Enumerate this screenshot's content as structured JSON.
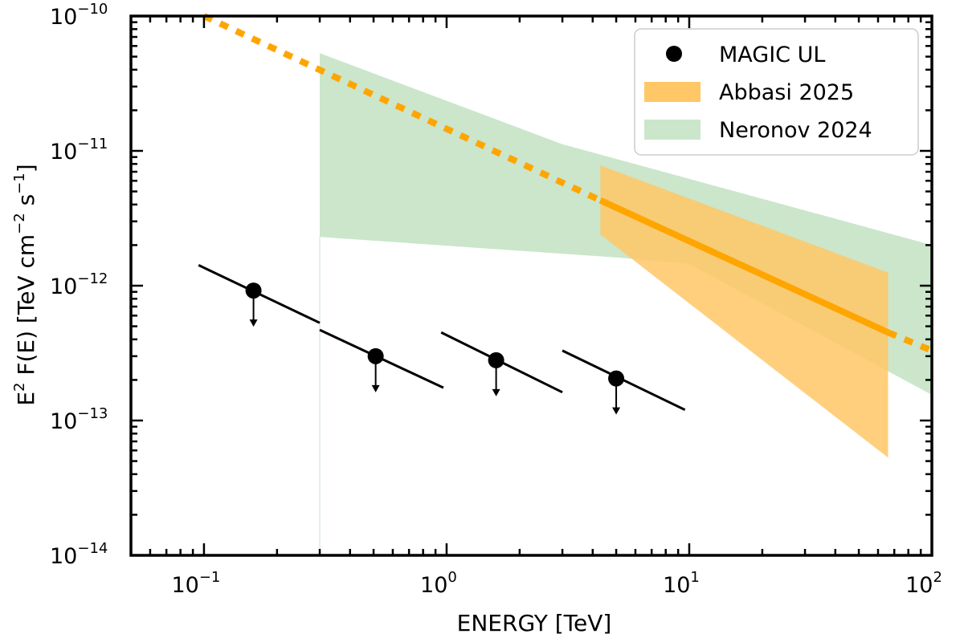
{
  "chart_data": {
    "type": "scatter",
    "title": "",
    "xlabel": "ENERGY [TeV]",
    "ylabel_parts": {
      "e": "E",
      "e_sup": "2",
      "mid": " F(E) [TeV cm",
      "cm_sup": "−2",
      "s": " s",
      "s_sup": "−1",
      "end": "]"
    },
    "xscale": "log",
    "yscale": "log",
    "xlim": [
      0.05,
      100
    ],
    "ylim": [
      1e-14,
      1e-10
    ],
    "x_ticks": [
      {
        "value": 0.1,
        "base": "10",
        "exp": "−1"
      },
      {
        "value": 1,
        "base": "10",
        "exp": "0"
      },
      {
        "value": 10,
        "base": "10",
        "exp": "1"
      },
      {
        "value": 100,
        "base": "10",
        "exp": "2"
      }
    ],
    "y_ticks": [
      {
        "value": 1e-14,
        "base": "10",
        "exp": "−14"
      },
      {
        "value": 1e-13,
        "base": "10",
        "exp": "−13"
      },
      {
        "value": 1e-12,
        "base": "10",
        "exp": "−12"
      },
      {
        "value": 1e-11,
        "base": "10",
        "exp": "−11"
      },
      {
        "value": 1e-10,
        "base": "10",
        "exp": "−10"
      }
    ],
    "legend": {
      "position": "top-right",
      "entries": [
        {
          "label": "MAGIC UL",
          "kind": "marker"
        },
        {
          "label": "Abbasi 2025",
          "kind": "patch-orange"
        },
        {
          "label": "Neronov 2024",
          "kind": "patch-green"
        }
      ]
    },
    "series": [
      {
        "name": "MAGIC UL",
        "kind": "upper-limits",
        "points": [
          {
            "x": 0.16,
            "y": 9.2e-13,
            "line_x": [
              0.095,
              0.3
            ],
            "line_y": [
              1.42e-12,
              5.3e-13
            ]
          },
          {
            "x": 0.51,
            "y": 3e-13,
            "line_x": [
              0.3,
              0.97
            ],
            "line_y": [
              4.7e-13,
              1.75e-13
            ]
          },
          {
            "x": 1.6,
            "y": 2.8e-13,
            "line_x": [
              0.95,
              3.0
            ],
            "line_y": [
              4.5e-13,
              1.62e-13
            ]
          },
          {
            "x": 5.0,
            "y": 2.05e-13,
            "line_x": [
              3.0,
              9.6
            ],
            "line_y": [
              3.3e-13,
              1.2e-13
            ]
          }
        ]
      },
      {
        "name": "Neronov 2024",
        "kind": "band",
        "upper": [
          [
            0.3,
            5.3e-11
          ],
          [
            3.0,
            1.12e-11
          ],
          [
            100,
            2e-12
          ]
        ],
        "lower": [
          [
            0.3,
            2.3e-12
          ],
          [
            5.0,
            1.62e-12
          ],
          [
            10,
            1.45e-12
          ],
          [
            100,
            1.55e-13
          ]
        ]
      },
      {
        "name": "Abbasi 2025",
        "kind": "band",
        "upper": [
          [
            4.3,
            7.8e-12
          ],
          [
            66,
            1.25e-12
          ]
        ],
        "lower": [
          [
            4.3,
            2.4e-12
          ],
          [
            66,
            5.3e-14
          ]
        ]
      },
      {
        "name": "Abbasi 2025 best fit",
        "kind": "line",
        "solid": [
          [
            4.3,
            4.3e-12
          ],
          [
            66,
            4.5e-13
          ]
        ],
        "dotted": [
          [
            [
              0.1,
              1e-10
            ],
            [
              4.3,
              4.3e-12
            ]
          ],
          [
            [
              66,
              4.5e-13
            ],
            [
              100,
              3.3e-13
            ]
          ]
        ]
      }
    ],
    "colors": {
      "orange": "#ffa500",
      "orange_band": "#ffc766",
      "green_band": "#cbe6cb",
      "marker": "#000000"
    }
  }
}
